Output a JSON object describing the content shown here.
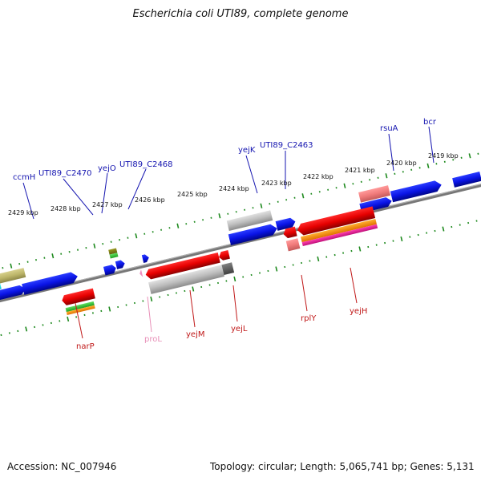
{
  "title": "Escherichia coli UTI89, complete genome",
  "footer": {
    "accession": "Accession: NC_007946",
    "stats": "Topology: circular; Length: 5,065,741 bp; Genes: 5,131"
  },
  "colors": {
    "plus_label": "#1515b0",
    "minus_label": "#c01818",
    "pseudo_label": "#e890b8",
    "tick": "#1e8a1e",
    "backbone": "#6e6e6e"
  },
  "tick_labels": [
    "2429 kbp",
    "2428 kbp",
    "2427 kbp",
    "2426 kbp",
    "2425 kbp",
    "2424 kbp",
    "2423 kbp",
    "2422 kbp",
    "2421 kbp",
    "2420 kbp",
    "2419 kbp"
  ],
  "plus_strand_genes": [
    "ccmH",
    "UTI89_C2470",
    "yejO",
    "UTI89_C2468",
    "yejK",
    "UTI89_C2463",
    "rsuA",
    "bcr"
  ],
  "minus_strand_genes": [
    "narP",
    "proL",
    "yejM",
    "yejL",
    "rplY",
    "yejH"
  ],
  "legend_note": ""
}
